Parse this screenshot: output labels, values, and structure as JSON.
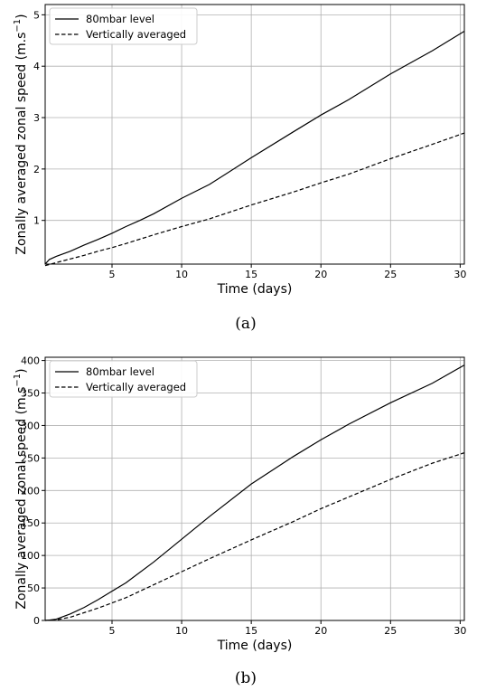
{
  "chart_data": [
    {
      "type": "line",
      "panel_label": "(a)",
      "xlabel": "Time (days)",
      "ylabel": "Zonally averaged zonal speed (m.s",
      "ylabel_sup": "−1",
      "ylabel_close": ")",
      "xlim": [
        0.2,
        30.3
      ],
      "ylim": [
        0.15,
        5.2
      ],
      "xticks": [
        5,
        10,
        15,
        20,
        25,
        30
      ],
      "yticks": [
        1,
        2,
        3,
        4,
        5
      ],
      "grid": true,
      "legend_position": "top-left",
      "series": [
        {
          "name": "80mbar level",
          "style": "solid",
          "x": [
            0.2,
            0.5,
            1,
            2,
            3,
            4,
            5,
            6,
            7,
            8,
            10,
            12,
            15,
            18,
            20,
            22,
            25,
            28,
            30.3
          ],
          "y": [
            0.15,
            0.24,
            0.3,
            0.4,
            0.52,
            0.63,
            0.75,
            0.88,
            1.0,
            1.13,
            1.43,
            1.7,
            2.22,
            2.72,
            3.05,
            3.35,
            3.85,
            4.3,
            4.68
          ]
        },
        {
          "name": "Vertically averaged",
          "style": "dashed",
          "x": [
            0.2,
            1,
            2,
            3,
            4,
            5,
            6,
            8,
            10,
            12,
            15,
            18,
            20,
            22,
            25,
            28,
            30.3
          ],
          "y": [
            0.12,
            0.18,
            0.25,
            0.32,
            0.4,
            0.47,
            0.55,
            0.72,
            0.88,
            1.03,
            1.3,
            1.55,
            1.73,
            1.9,
            2.2,
            2.48,
            2.7
          ]
        }
      ]
    },
    {
      "type": "line",
      "panel_label": "(b)",
      "xlabel": "Time (days)",
      "ylabel": "Zonally averaged zonal speed (m.s",
      "ylabel_sup": "−1",
      "ylabel_close": ")",
      "xlim": [
        0.2,
        30.3
      ],
      "ylim": [
        0,
        405
      ],
      "xticks": [
        5,
        10,
        15,
        20,
        25,
        30
      ],
      "yticks": [
        0,
        50,
        100,
        150,
        200,
        250,
        300,
        350,
        400
      ],
      "grid": true,
      "legend_position": "top-left",
      "series": [
        {
          "name": "80mbar level",
          "style": "solid",
          "x": [
            0.2,
            0.5,
            1,
            1.5,
            2,
            3,
            4,
            5,
            6,
            8,
            10,
            12,
            15,
            18,
            20,
            22,
            25,
            28,
            30.3
          ],
          "y": [
            0,
            0.5,
            2,
            6,
            10,
            20,
            32,
            45,
            58,
            90,
            125,
            160,
            210,
            252,
            278,
            302,
            335,
            365,
            393
          ]
        },
        {
          "name": "Vertically averaged",
          "style": "dashed",
          "x": [
            0.2,
            1,
            2,
            3,
            4,
            5,
            6,
            8,
            10,
            12,
            15,
            18,
            20,
            22,
            25,
            28,
            30.3
          ],
          "y": [
            0,
            1,
            5,
            12,
            19,
            27,
            35,
            55,
            75,
            95,
            124,
            152,
            172,
            190,
            217,
            242,
            258
          ]
        }
      ]
    }
  ]
}
